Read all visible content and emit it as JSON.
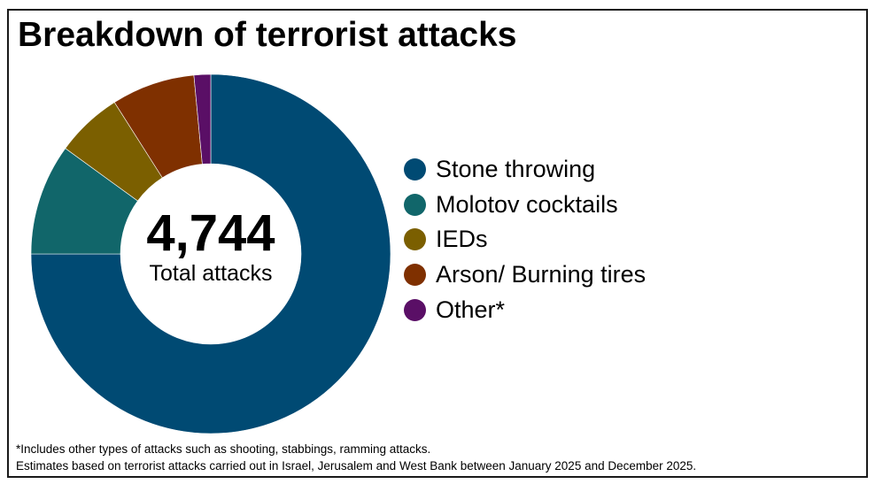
{
  "colors": {
    "stone": "#004a73",
    "molotov": "#11666a",
    "ieds": "#7b5f00",
    "arson": "#7f3000",
    "other": "#5a0f66"
  },
  "chart_data": {
    "type": "pie",
    "title": "Breakdown of terrorist attacks",
    "center_value": "4,744",
    "center_label": "Total attacks",
    "legend_position": "right",
    "series": [
      {
        "name": "Stone throwing",
        "value": 75,
        "color": "#004a73"
      },
      {
        "name": "Molotov cocktails",
        "value": 10,
        "color": "#11666a"
      },
      {
        "name": "IEDs",
        "value": 6,
        "color": "#7b5f00"
      },
      {
        "name": "Arson/ Burning tires",
        "value": 7.5,
        "color": "#7f3000"
      },
      {
        "name": "Other*",
        "value": 1.5,
        "color": "#5a0f66"
      }
    ]
  },
  "footnotes": [
    "*Includes other types of attacks such as shooting, stabbings, ramming attacks.",
    "Estimates based on terrorist attacks carried out in Israel, Jerusalem and West Bank between January 2025 and December 2025."
  ]
}
